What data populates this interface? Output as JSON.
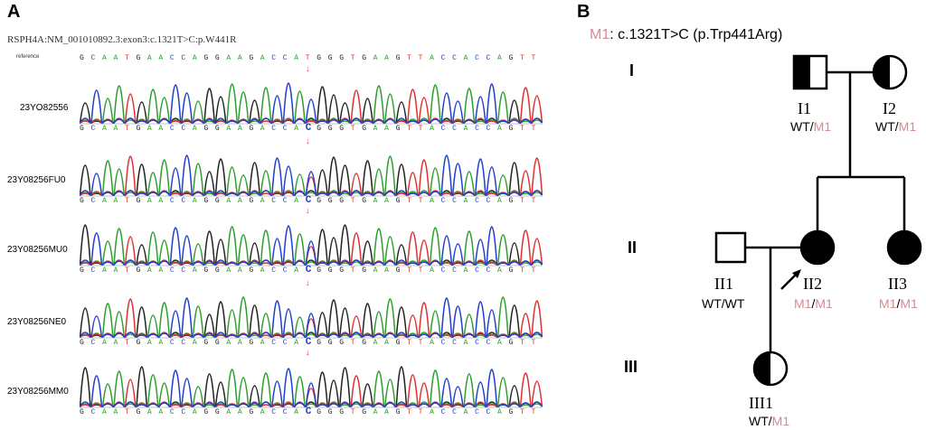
{
  "panel_a": {
    "letter": "A",
    "gene_title": "RSPH4A:NM_001010892.3:exon3:c.1321T>C:p.W441R",
    "reference_label": "reference",
    "reference_seq": "GCAATGAACCAGGAAGACCATGGGTGAAGTTACCACCAGTT",
    "samples": [
      {
        "label": "23YO82556",
        "seq": "GCAATGAACCAGGAAGACCACGGGTGAAGTTACCACCAGTT"
      },
      {
        "label": "23Y08256FU0",
        "seq": "GCAATGAACCAGGAAGACCACGGGTGAAGTTACCACCAGTT"
      },
      {
        "label": "23Y08256MU0",
        "seq": "GCAATGAACCAGGAAGACCACGGGTGAAGTTACCACCAGTT"
      },
      {
        "label": "23Y08256NE0",
        "seq": "GCAATGAACCAGGAAGACCACGGGTGAAGTTACCACCAGTT"
      },
      {
        "label": "23Y08256MM0",
        "seq": "GCAATGAACCAGGAAGACCACGGGTGAAGTTACCACCAGTT"
      }
    ],
    "arrow_glyph": "↓"
  },
  "panel_b": {
    "letter": "B",
    "variant_prefix": "M1",
    "variant_text": ": c.1321T>C (p.Trp441Arg)",
    "generations": [
      "I",
      "II",
      "III"
    ],
    "individuals": [
      {
        "id": "I1",
        "wt": "WT",
        "sep": "/",
        "alt": "M1"
      },
      {
        "id": "I2",
        "wt": "WT",
        "sep": "/",
        "alt": "M1"
      },
      {
        "id": "II1",
        "wt": "WT",
        "sep": "/",
        "alt": "WT"
      },
      {
        "id": "II2",
        "wt": "M1",
        "sep": "/",
        "alt": "M1"
      },
      {
        "id": "II3",
        "wt": "M1",
        "sep": "/",
        "alt": "M1"
      },
      {
        "id": "III1",
        "wt": "WT",
        "sep": "/",
        "alt": "M1"
      }
    ]
  },
  "colors": {
    "A": "#2ca02c",
    "C": "#1f3fd0",
    "G": "#222222",
    "T": "#e03030",
    "m1": "#d98a93",
    "arrow": "#e05050"
  }
}
